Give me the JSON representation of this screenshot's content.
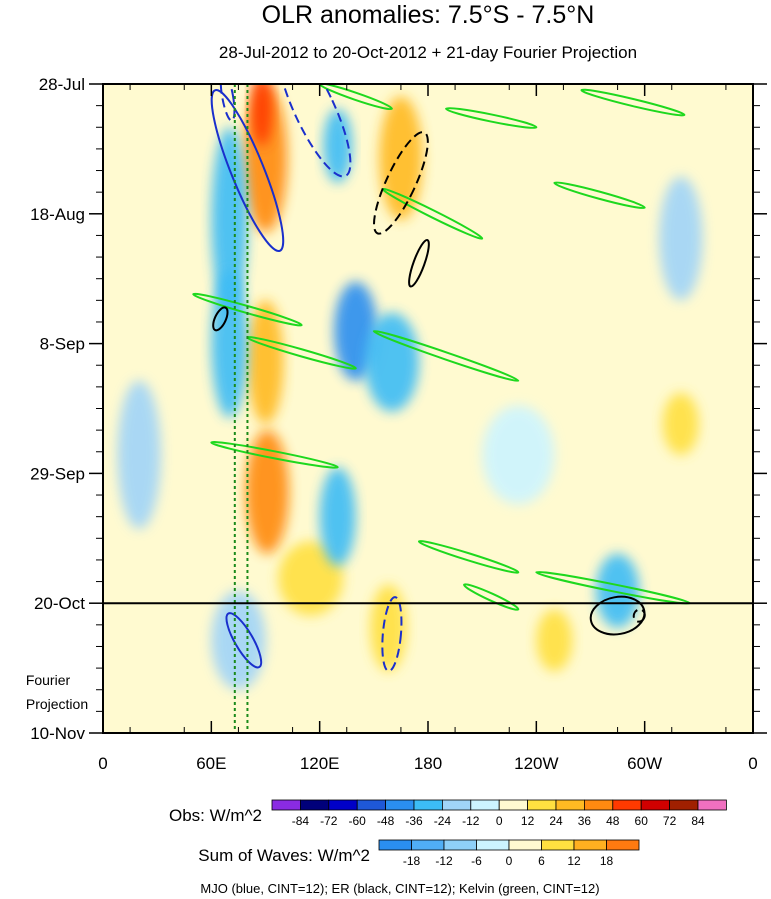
{
  "chart_data": {
    "type": "heatmap",
    "title": "OLR anomalies: 7.5°S - 7.5°N",
    "subtitle": "28-Jul-2012 to 20-Oct-2012 + 21-day Fourier Projection",
    "x_ticks": [
      {
        "lon": 0,
        "label": "0"
      },
      {
        "lon": 60,
        "label": "60E"
      },
      {
        "lon": 120,
        "label": "120E"
      },
      {
        "lon": 180,
        "label": "180"
      },
      {
        "lon": 240,
        "label": "120W"
      },
      {
        "lon": 300,
        "label": "60W"
      },
      {
        "lon": 360,
        "label": "0"
      }
    ],
    "xlim": [
      0,
      360
    ],
    "y_ticks": [
      {
        "day": 0,
        "label": "28-Jul"
      },
      {
        "day": 21,
        "label": "18-Aug"
      },
      {
        "day": 42,
        "label": "8-Sep"
      },
      {
        "day": 63,
        "label": "29-Sep"
      },
      {
        "day": 84,
        "label": "20-Oct"
      },
      {
        "day": 105,
        "label": "10-Nov"
      }
    ],
    "ylim": [
      0,
      105
    ],
    "observed_end_day": 84,
    "projection_label": [
      "Fourier",
      "Projection"
    ],
    "reference_lon": [
      73,
      80
    ],
    "obs_colorbar": {
      "title": "Obs: W/m^2",
      "levels": [
        "-84",
        "-72",
        "-60",
        "-48",
        "-36",
        "-24",
        "-12",
        "0",
        "12",
        "24",
        "36",
        "48",
        "60",
        "72",
        "84"
      ],
      "colors": [
        "#8a2be2",
        "#00007a",
        "#0000c8",
        "#1e58d8",
        "#2a8ef0",
        "#3cbcf5",
        "#a0d4f8",
        "#ccf4ff",
        "#fffad0",
        "#ffe040",
        "#ffba22",
        "#ff8a10",
        "#ff3a00",
        "#d00000",
        "#a02000",
        "#f070c0"
      ]
    },
    "waves_colorbar": {
      "title": "Sum of Waves: W/m^2",
      "levels": [
        "-18",
        "-12",
        "-6",
        "0",
        "6",
        "12",
        "18"
      ],
      "colors": [
        "#2a8ef0",
        "#50aef5",
        "#8ed0f8",
        "#ccf4ff",
        "#fffad0",
        "#ffe040",
        "#ffb020",
        "#ff7a10"
      ]
    },
    "caption": "MJO (blue, CINT=12); ER (black, CINT=12); Kelvin (green, CINT=12)",
    "series_colors": {
      "mjo": "#1a2fcc",
      "er": "#000000",
      "kelvin": "#1ed81e"
    },
    "mjo_contours": [
      {
        "lon": 80,
        "day": 14,
        "rlon": 9,
        "rday": 14,
        "angle": -22,
        "dashed": false
      },
      {
        "lon": 117,
        "day": 4,
        "rlon": 11,
        "rday": 12,
        "angle": -25,
        "dashed": true
      },
      {
        "lon": 69,
        "day": 2,
        "rlon": 3,
        "rday": 4,
        "angle": -10,
        "dashed": true
      },
      {
        "lon": 78,
        "day": 90,
        "rlon": 5,
        "rday": 5,
        "angle": -30,
        "dashed": false
      },
      {
        "lon": 160,
        "day": 89,
        "rlon": 5,
        "rday": 6,
        "angle": 5,
        "dashed": true
      }
    ],
    "er_contours": [
      {
        "lon": 165,
        "day": 16,
        "rlon": 8,
        "rday": 9,
        "angle": 25,
        "dashed": true
      },
      {
        "lon": 175,
        "day": 29,
        "rlon": 3,
        "rday": 4,
        "angle": 20,
        "dashed": false
      },
      {
        "lon": 65,
        "day": 38,
        "rlon": 3,
        "rday": 2,
        "angle": 25,
        "dashed": false
      },
      {
        "lon": 285,
        "day": 86,
        "rlon": 15,
        "rday": 3,
        "angle": -10,
        "dashed": false
      },
      {
        "lon": 297,
        "day": 86,
        "rlon": 3,
        "rday": 1,
        "angle": 20,
        "dashed": true
      }
    ],
    "kelvin_contours": [
      {
        "lon1": 50,
        "day1": 34,
        "lon2": 110,
        "day2": 39
      },
      {
        "lon1": 80,
        "day1": 41,
        "lon2": 140,
        "day2": 46
      },
      {
        "lon1": 150,
        "day1": 40,
        "lon2": 230,
        "day2": 48
      },
      {
        "lon1": 60,
        "day1": 58,
        "lon2": 130,
        "day2": 62
      },
      {
        "lon1": 155,
        "day1": 17,
        "lon2": 210,
        "day2": 25
      },
      {
        "lon1": 265,
        "day1": 1,
        "lon2": 322,
        "day2": 5
      },
      {
        "lon1": 120,
        "day1": 0,
        "lon2": 160,
        "day2": 4
      },
      {
        "lon1": 190,
        "day1": 4,
        "lon2": 240,
        "day2": 7
      },
      {
        "lon1": 250,
        "day1": 16,
        "lon2": 300,
        "day2": 20
      },
      {
        "lon1": 175,
        "day1": 74,
        "lon2": 230,
        "day2": 79
      },
      {
        "lon1": 240,
        "day1": 79,
        "lon2": 325,
        "day2": 84
      },
      {
        "lon1": 200,
        "day1": 81,
        "lon2": 230,
        "day2": 85
      }
    ],
    "anomaly_blobs": [
      {
        "lon": 90,
        "day": 12,
        "rlon": 12,
        "rday": 12,
        "value": 40
      },
      {
        "lon": 88,
        "day": 4,
        "rlon": 6,
        "rday": 6,
        "value": 55
      },
      {
        "lon": 90,
        "day": 45,
        "rlon": 10,
        "rday": 10,
        "value": 28
      },
      {
        "lon": 91,
        "day": 66,
        "rlon": 12,
        "rday": 10,
        "value": 45
      },
      {
        "lon": 165,
        "day": 12,
        "rlon": 12,
        "rday": 10,
        "value": 30
      },
      {
        "lon": 158,
        "day": 88,
        "rlon": 10,
        "rday": 7,
        "value": 22
      },
      {
        "lon": 115,
        "day": 80,
        "rlon": 18,
        "rday": 6,
        "value": 18
      },
      {
        "lon": 320,
        "day": 55,
        "rlon": 10,
        "rday": 5,
        "value": 22
      },
      {
        "lon": 250,
        "day": 90,
        "rlon": 10,
        "rday": 5,
        "value": 15
      },
      {
        "lon": 70,
        "day": 22,
        "rlon": 10,
        "rday": 15,
        "value": -35
      },
      {
        "lon": 70,
        "day": 42,
        "rlon": 10,
        "rday": 12,
        "value": -30
      },
      {
        "lon": 140,
        "day": 40,
        "rlon": 12,
        "rday": 8,
        "value": -40
      },
      {
        "lon": 160,
        "day": 45,
        "rlon": 15,
        "rday": 8,
        "value": -30
      },
      {
        "lon": 130,
        "day": 70,
        "rlon": 10,
        "rday": 8,
        "value": -28
      },
      {
        "lon": 130,
        "day": 10,
        "rlon": 8,
        "rday": 6,
        "value": -25
      },
      {
        "lon": 75,
        "day": 90,
        "rlon": 15,
        "rday": 8,
        "value": -12
      },
      {
        "lon": 285,
        "day": 82,
        "rlon": 12,
        "rday": 6,
        "value": -26
      },
      {
        "lon": 320,
        "day": 25,
        "rlon": 12,
        "rday": 10,
        "value": -15
      },
      {
        "lon": 20,
        "day": 60,
        "rlon": 12,
        "rday": 12,
        "value": -14
      },
      {
        "lon": 230,
        "day": 60,
        "rlon": 20,
        "rday": 8,
        "value": -10
      }
    ]
  }
}
